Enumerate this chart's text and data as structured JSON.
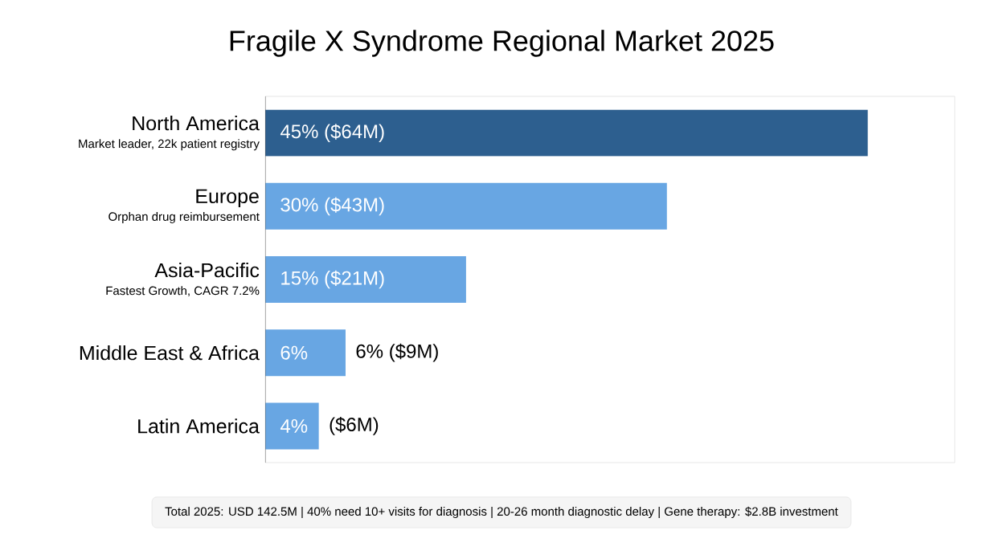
{
  "chart_data": {
    "type": "bar",
    "orientation": "horizontal",
    "title": "Fragile X Syndrome Regional Market 2025",
    "categories": [
      "North America",
      "Europe",
      "Asia-Pacific",
      "Middle East & Africa",
      "Latin America"
    ],
    "values": [
      45,
      30,
      15,
      6,
      4
    ],
    "colors": [
      "#2d5f8f",
      "#68a6e3",
      "#68a6e3",
      "#68a6e3",
      "#68a6e3"
    ],
    "value_labels": [
      "45% ($64M)",
      "30% ($43M)",
      "15% ($21M)",
      "6%",
      "4%"
    ],
    "xlim": [
      0,
      51.5
    ],
    "tick_labels": "y",
    "annotations": [
      "Market leader, 22k patient registry",
      "Orphan drug reimbursement",
      "Fastest Growth, CAGR 7.2%",
      {
        "text": "6% ($9M)",
        "x": 6,
        "y": "Middle East & Africa"
      },
      {
        "text": "($6M)",
        "x": 4,
        "y": "Latin America"
      },
      "Total 2025: USD 142.5M | 40% need 10+ visits for diagnosis | 20-26 month diagnostic delay | Gene therapy: $2.8B investment"
    ]
  }
}
